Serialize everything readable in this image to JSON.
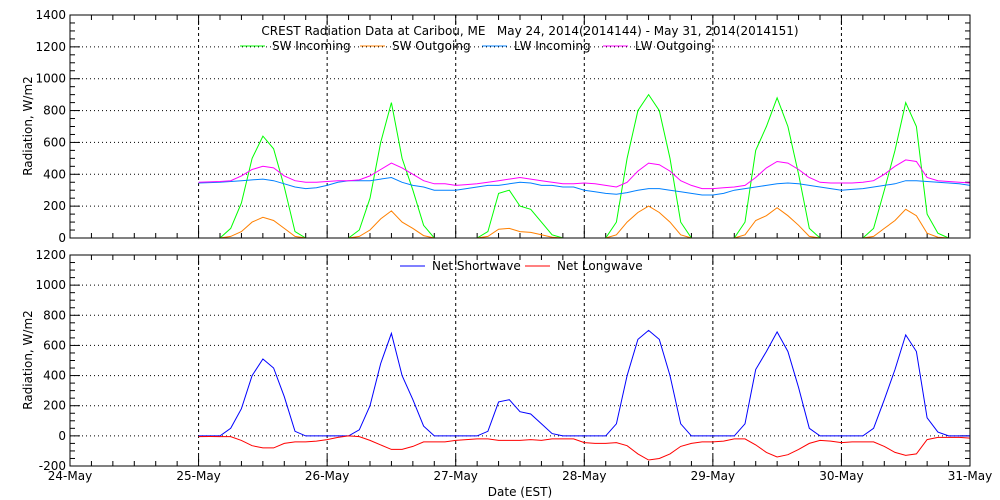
{
  "chart_data": [
    {
      "type": "line",
      "title": "CREST Radiation Data at Caribou, ME   May 24, 2014(2014144) - May 31, 2014(2014151)",
      "ylabel": "Radiation, W/m2",
      "xlabel": "",
      "ylim": [
        0,
        1400
      ],
      "yticks": [
        0,
        200,
        400,
        600,
        800,
        1000,
        1200,
        1400
      ],
      "xlim": [
        "2014-05-24 00:00",
        "2014-05-31 00:00"
      ],
      "grid": true,
      "legend": "top",
      "x_sampling": "every 2 hours from 2014-05-25 00:00 to 2014-05-31 00:00",
      "series": [
        {
          "name": "SW Incoming",
          "color": "#00ff00",
          "values": [
            0,
            0,
            0,
            60,
            220,
            500,
            640,
            560,
            320,
            40,
            0,
            0,
            0,
            0,
            0,
            50,
            250,
            600,
            850,
            500,
            300,
            80,
            0,
            0,
            0,
            0,
            0,
            40,
            280,
            300,
            200,
            180,
            100,
            20,
            0,
            0,
            0,
            0,
            0,
            100,
            500,
            800,
            900,
            800,
            500,
            100,
            0,
            0,
            0,
            0,
            0,
            100,
            550,
            700,
            880,
            700,
            400,
            60,
            0,
            0,
            0,
            0,
            0,
            60,
            300,
            550,
            850,
            700,
            150,
            30,
            0,
            0,
            0
          ]
        },
        {
          "name": "SW Outgoing",
          "color": "#ff8000",
          "values": [
            0,
            0,
            0,
            10,
            40,
            100,
            130,
            110,
            60,
            10,
            0,
            0,
            0,
            0,
            0,
            10,
            50,
            120,
            170,
            100,
            60,
            15,
            0,
            0,
            0,
            0,
            0,
            10,
            55,
            60,
            40,
            35,
            20,
            5,
            0,
            0,
            0,
            0,
            0,
            20,
            100,
            160,
            200,
            160,
            100,
            20,
            0,
            0,
            0,
            0,
            0,
            20,
            110,
            140,
            190,
            140,
            80,
            10,
            0,
            0,
            0,
            0,
            0,
            10,
            60,
            110,
            180,
            140,
            30,
            5,
            0,
            0,
            0
          ]
        },
        {
          "name": "LW Incoming",
          "color": "#0080ff",
          "values": [
            345,
            348,
            350,
            355,
            360,
            365,
            370,
            360,
            340,
            320,
            310,
            315,
            330,
            350,
            360,
            360,
            360,
            370,
            380,
            350,
            330,
            320,
            300,
            300,
            300,
            310,
            320,
            330,
            330,
            340,
            350,
            345,
            330,
            330,
            320,
            320,
            300,
            290,
            280,
            275,
            285,
            300,
            310,
            310,
            300,
            290,
            280,
            270,
            270,
            280,
            300,
            310,
            320,
            330,
            340,
            345,
            340,
            330,
            320,
            310,
            300,
            305,
            310,
            320,
            330,
            340,
            360,
            360,
            355,
            350,
            345,
            340,
            330
          ]
        },
        {
          "name": "LW Outgoing",
          "color": "#ff00ff",
          "values": [
            350,
            352,
            355,
            360,
            390,
            430,
            450,
            440,
            390,
            360,
            350,
            350,
            355,
            360,
            360,
            365,
            390,
            430,
            470,
            440,
            400,
            360,
            340,
            340,
            330,
            335,
            340,
            350,
            360,
            370,
            380,
            370,
            360,
            350,
            340,
            340,
            345,
            340,
            330,
            320,
            350,
            420,
            470,
            460,
            420,
            360,
            330,
            310,
            310,
            315,
            320,
            330,
            380,
            440,
            480,
            470,
            430,
            380,
            350,
            345,
            345,
            345,
            350,
            360,
            400,
            450,
            490,
            480,
            380,
            360,
            355,
            350,
            345
          ]
        }
      ]
    },
    {
      "type": "line",
      "title": "",
      "ylabel": "Radiation, W/m2",
      "xlabel": "Date (EST)",
      "ylim": [
        -200,
        1200
      ],
      "yticks": [
        -200,
        0,
        200,
        400,
        600,
        800,
        1000,
        1200
      ],
      "xticks": [
        "24-May",
        "25-May",
        "26-May",
        "27-May",
        "28-May",
        "29-May",
        "30-May",
        "31-May"
      ],
      "xlim": [
        "2014-05-24 00:00",
        "2014-05-31 00:00"
      ],
      "grid": true,
      "legend": "top",
      "x_sampling": "every 2 hours from 2014-05-25 00:00 to 2014-05-31 00:00",
      "series": [
        {
          "name": "Net Shortwave",
          "color": "#0000ff",
          "values": [
            0,
            0,
            0,
            50,
            180,
            400,
            510,
            450,
            260,
            30,
            0,
            0,
            0,
            0,
            0,
            40,
            200,
            480,
            680,
            400,
            240,
            65,
            0,
            0,
            0,
            0,
            0,
            30,
            225,
            240,
            160,
            145,
            80,
            15,
            0,
            0,
            0,
            0,
            0,
            80,
            400,
            640,
            700,
            640,
            400,
            80,
            0,
            0,
            0,
            0,
            0,
            80,
            440,
            560,
            690,
            560,
            320,
            50,
            0,
            0,
            0,
            0,
            0,
            50,
            240,
            440,
            670,
            560,
            120,
            25,
            0,
            0,
            0
          ]
        },
        {
          "name": "Net Longwave",
          "color": "#ff0000",
          "values": [
            -5,
            -4,
            -5,
            -5,
            -30,
            -65,
            -80,
            -80,
            -50,
            -40,
            -40,
            -35,
            -25,
            -10,
            0,
            -5,
            -30,
            -60,
            -90,
            -90,
            -70,
            -40,
            -40,
            -40,
            -30,
            -25,
            -20,
            -20,
            -30,
            -30,
            -30,
            -25,
            -30,
            -20,
            -20,
            -20,
            -45,
            -50,
            -50,
            -45,
            -65,
            -120,
            -160,
            -150,
            -120,
            -70,
            -50,
            -40,
            -40,
            -35,
            -20,
            -20,
            -60,
            -110,
            -140,
            -125,
            -90,
            -50,
            -30,
            -35,
            -45,
            -40,
            -40,
            -40,
            -70,
            -110,
            -130,
            -120,
            -25,
            -10,
            -10,
            -10,
            -15
          ]
        }
      ]
    }
  ]
}
